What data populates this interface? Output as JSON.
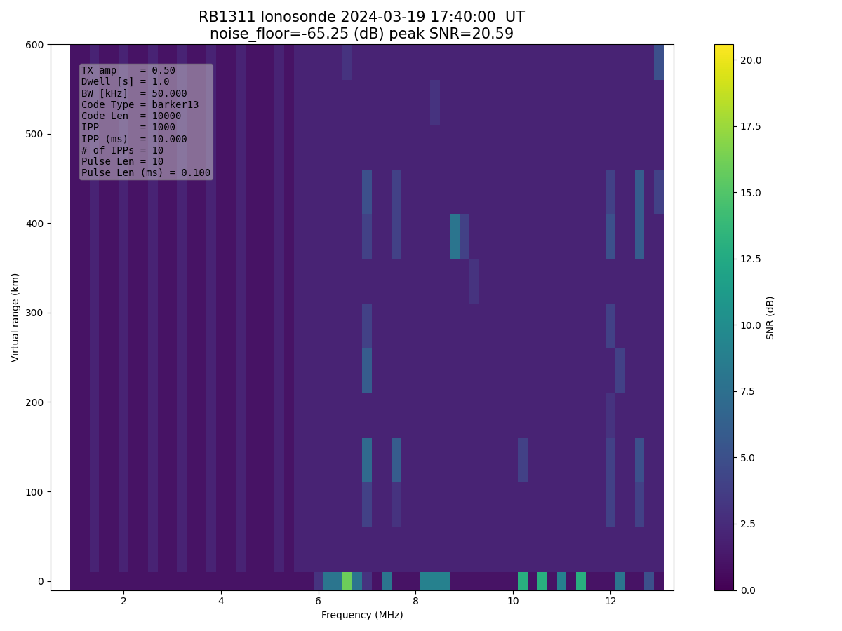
{
  "chart_data": {
    "type": "heatmap",
    "title": "RB1311 Ionosonde 2024-03-19 17:40:00  UT\nnoise_floor=-65.25 (dB) peak SNR=20.59",
    "x_label": "Frequency (MHz)",
    "y_label": "Virtual range (km)",
    "color": "viridis",
    "xlim": [
      0.5,
      13.3
    ],
    "ylim": [
      -10,
      600
    ],
    "xticks": [
      2,
      4,
      6,
      8,
      10,
      12
    ],
    "yticks": [
      0,
      100,
      200,
      300,
      400,
      500,
      600
    ],
    "annotation": [
      "TX amp    = 0.50",
      "Dwell [s] = 1.0",
      "BW [kHz]  = 50.000",
      "Code Type = barker13",
      "Code Len  = 10000",
      "IPP       = 1000",
      "IPP (ms)  = 10.000",
      "# of IPPs = 10",
      "Pulse Len = 10",
      "Pulse Len (ms) = 0.100"
    ],
    "colorbar": {
      "label": "SNR (dB)",
      "range": [
        0,
        20.59
      ],
      "ticks": [
        {
          "value": 0,
          "label": "0.0"
        },
        {
          "value": 2.5,
          "label": "2.5"
        },
        {
          "value": 5,
          "label": "5.0"
        },
        {
          "value": 7.5,
          "label": "7.5"
        },
        {
          "value": 10,
          "label": "10.0"
        },
        {
          "value": 12.5,
          "label": "12.5"
        },
        {
          "value": 15,
          "label": "15.0"
        },
        {
          "value": 17.5,
          "label": "17.5"
        },
        {
          "value": 20,
          "label": "20.0"
        }
      ]
    },
    "x_edges": [
      0.9,
      1.1,
      1.3,
      1.5,
      1.7,
      1.9,
      2.1,
      2.3,
      2.5,
      2.7,
      2.9,
      3.1,
      3.3,
      3.5,
      3.7,
      3.9,
      4.1,
      4.3,
      4.5,
      4.7,
      4.9,
      5.1,
      5.3,
      5.5,
      5.7,
      5.9,
      6.1,
      6.3,
      6.5,
      6.7,
      6.9,
      7.1,
      7.3,
      7.5,
      7.7,
      7.9,
      8.1,
      8.3,
      8.5,
      8.7,
      8.9,
      9.1,
      9.3,
      9.5,
      9.7,
      9.9,
      10.1,
      10.3,
      10.5,
      10.7,
      10.9,
      11.1,
      11.3,
      11.5,
      11.7,
      11.9,
      12.1,
      12.3,
      12.5,
      12.7,
      12.9,
      13.1
    ],
    "y_edges": [
      -10,
      10,
      60,
      110,
      160,
      210,
      260,
      310,
      360,
      410,
      460,
      510,
      560,
      600
    ],
    "cells": [
      [
        1,
        1,
        1,
        1,
        1,
        1,
        1,
        1,
        1,
        1,
        1,
        1,
        1,
        1,
        1,
        1,
        1,
        1,
        1,
        1,
        1,
        1,
        1,
        1,
        1,
        3,
        8,
        8,
        16,
        8,
        3,
        1,
        8,
        1,
        1,
        1,
        9,
        9,
        9,
        1,
        1,
        1,
        1,
        1,
        1,
        1,
        13,
        1,
        13,
        1,
        9,
        1,
        13,
        1,
        1,
        1,
        8,
        1,
        1,
        5,
        1
      ],
      [
        1,
        1,
        2,
        1,
        1,
        2,
        1,
        1,
        2,
        1,
        1,
        2,
        1,
        1,
        2,
        1,
        1,
        2,
        1,
        1,
        1,
        2,
        1,
        2,
        2,
        2,
        2,
        2,
        2,
        2,
        2,
        2,
        2,
        2,
        2,
        2,
        2,
        2,
        2,
        2,
        2,
        2,
        2,
        2,
        2,
        2,
        2,
        2,
        2,
        2,
        2,
        2,
        2,
        2,
        2,
        2,
        2,
        2,
        2,
        2,
        2
      ],
      [
        1,
        1,
        2,
        1,
        1,
        2,
        1,
        1,
        2,
        1,
        1,
        2,
        1,
        1,
        2,
        1,
        1,
        2,
        1,
        1,
        1,
        2,
        1,
        2,
        2,
        2,
        2,
        2,
        2,
        2,
        4,
        2,
        2,
        3,
        2,
        2,
        2,
        2,
        2,
        2,
        2,
        2,
        2,
        2,
        2,
        2,
        2,
        2,
        2,
        2,
        2,
        2,
        2,
        2,
        2,
        4,
        2,
        2,
        4,
        2,
        2
      ],
      [
        1,
        1,
        2,
        1,
        1,
        2,
        1,
        1,
        2,
        1,
        1,
        2,
        1,
        1,
        2,
        1,
        1,
        2,
        1,
        1,
        1,
        2,
        1,
        2,
        2,
        2,
        2,
        2,
        2,
        2,
        7,
        2,
        2,
        6,
        2,
        2,
        2,
        2,
        2,
        2,
        2,
        2,
        2,
        2,
        2,
        2,
        4,
        2,
        2,
        2,
        2,
        2,
        2,
        2,
        2,
        4,
        2,
        2,
        5,
        2,
        2
      ],
      [
        1,
        1,
        2,
        1,
        1,
        2,
        1,
        1,
        2,
        1,
        1,
        2,
        1,
        1,
        2,
        1,
        1,
        2,
        1,
        1,
        1,
        2,
        1,
        2,
        2,
        2,
        2,
        2,
        2,
        2,
        2,
        2,
        2,
        2,
        2,
        2,
        2,
        2,
        2,
        2,
        2,
        2,
        2,
        2,
        2,
        2,
        2,
        2,
        2,
        2,
        2,
        2,
        2,
        2,
        2,
        3,
        2,
        2,
        2,
        2,
        2
      ],
      [
        1,
        1,
        2,
        1,
        1,
        2,
        1,
        1,
        2,
        1,
        1,
        2,
        1,
        1,
        2,
        1,
        1,
        2,
        1,
        1,
        1,
        2,
        1,
        2,
        2,
        2,
        2,
        2,
        2,
        2,
        6,
        2,
        2,
        2,
        2,
        2,
        2,
        2,
        2,
        2,
        2,
        2,
        2,
        2,
        2,
        2,
        2,
        2,
        2,
        2,
        2,
        2,
        2,
        2,
        2,
        2,
        4,
        2,
        2,
        2,
        2
      ],
      [
        1,
        1,
        2,
        1,
        1,
        2,
        1,
        1,
        2,
        1,
        1,
        2,
        1,
        1,
        2,
        1,
        1,
        2,
        1,
        1,
        1,
        2,
        1,
        2,
        2,
        2,
        2,
        2,
        2,
        2,
        4,
        2,
        2,
        2,
        2,
        2,
        2,
        2,
        2,
        2,
        2,
        2,
        2,
        2,
        2,
        2,
        2,
        2,
        2,
        2,
        2,
        2,
        2,
        2,
        2,
        4,
        2,
        2,
        2,
        2,
        2
      ],
      [
        1,
        1,
        2,
        1,
        1,
        2,
        1,
        1,
        2,
        1,
        1,
        2,
        1,
        1,
        2,
        1,
        1,
        2,
        1,
        1,
        1,
        2,
        1,
        2,
        2,
        2,
        2,
        2,
        2,
        2,
        2,
        2,
        2,
        2,
        2,
        2,
        2,
        2,
        2,
        2,
        2,
        3,
        2,
        2,
        2,
        2,
        2,
        2,
        2,
        2,
        2,
        2,
        2,
        2,
        2,
        2,
        2,
        2,
        2,
        2,
        2
      ],
      [
        1,
        1,
        2,
        1,
        1,
        2,
        1,
        1,
        2,
        1,
        1,
        2,
        1,
        1,
        2,
        1,
        1,
        2,
        1,
        1,
        1,
        2,
        1,
        2,
        2,
        2,
        2,
        2,
        2,
        2,
        4,
        2,
        2,
        4,
        2,
        2,
        2,
        2,
        2,
        8,
        4,
        2,
        2,
        2,
        2,
        2,
        2,
        2,
        2,
        2,
        2,
        2,
        2,
        2,
        2,
        5,
        2,
        2,
        6,
        2,
        2
      ],
      [
        1,
        1,
        2,
        1,
        1,
        2,
        1,
        1,
        2,
        1,
        1,
        2,
        1,
        1,
        2,
        1,
        1,
        2,
        1,
        1,
        1,
        2,
        1,
        2,
        2,
        2,
        2,
        2,
        2,
        2,
        5,
        2,
        2,
        4,
        2,
        2,
        2,
        2,
        2,
        2,
        2,
        2,
        2,
        2,
        2,
        2,
        2,
        2,
        2,
        2,
        2,
        2,
        2,
        2,
        2,
        4,
        2,
        2,
        6,
        2,
        4
      ],
      [
        1,
        1,
        2,
        1,
        1,
        2,
        1,
        1,
        2,
        1,
        1,
        2,
        1,
        1,
        2,
        1,
        1,
        2,
        1,
        1,
        1,
        2,
        1,
        2,
        2,
        2,
        2,
        2,
        2,
        2,
        2,
        2,
        2,
        2,
        2,
        2,
        2,
        2,
        2,
        2,
        2,
        2,
        2,
        2,
        2,
        2,
        2,
        2,
        2,
        2,
        2,
        2,
        2,
        2,
        2,
        2,
        2,
        2,
        2,
        2,
        2
      ],
      [
        1,
        1,
        2,
        1,
        1,
        2,
        1,
        1,
        2,
        1,
        1,
        2,
        1,
        1,
        2,
        1,
        1,
        2,
        1,
        1,
        1,
        2,
        1,
        2,
        2,
        2,
        2,
        2,
        2,
        2,
        2,
        2,
        2,
        2,
        2,
        2,
        2,
        3,
        2,
        2,
        2,
        2,
        2,
        2,
        2,
        2,
        2,
        2,
        2,
        2,
        2,
        2,
        2,
        2,
        2,
        2,
        2,
        2,
        2,
        2,
        2
      ],
      [
        1,
        1,
        2,
        1,
        1,
        2,
        1,
        1,
        2,
        1,
        1,
        2,
        1,
        1,
        2,
        1,
        1,
        2,
        1,
        1,
        1,
        2,
        1,
        2,
        2,
        2,
        2,
        2,
        3,
        2,
        2,
        2,
        2,
        2,
        2,
        2,
        2,
        2,
        2,
        2,
        2,
        2,
        2,
        2,
        2,
        2,
        2,
        2,
        2,
        2,
        2,
        2,
        2,
        2,
        2,
        2,
        2,
        2,
        2,
        2,
        5
      ]
    ]
  }
}
